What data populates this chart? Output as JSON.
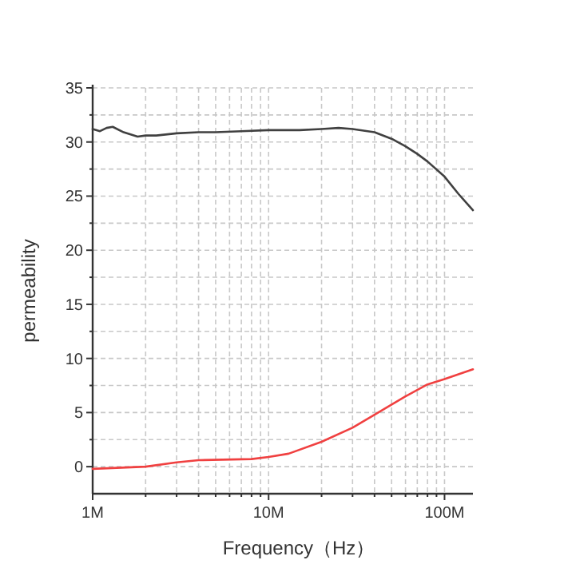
{
  "chart_data": {
    "type": "line",
    "xlabel": "Frequency（Hz）",
    "ylabel": "permeability",
    "log": "x",
    "xlim": [
      1000000,
      145000000
    ],
    "xticks": [
      {
        "value": 1000000,
        "label": "1M"
      },
      {
        "value": 10000000,
        "label": "10M"
      },
      {
        "value": 100000000,
        "label": "100M"
      }
    ],
    "ylim": [
      -2.5,
      35
    ],
    "yticks": [
      0,
      {
        "value": 2.5,
        "label": null
      },
      5,
      {
        "value": 7.5,
        "label": null
      },
      10,
      {
        "value": 12.5,
        "label": null
      },
      15,
      {
        "value": 17.5,
        "label": null
      },
      20,
      {
        "value": 22.5,
        "label": null
      },
      25,
      {
        "value": 27.5,
        "label": null
      },
      30,
      {
        "value": 32.5,
        "label": null
      },
      35
    ],
    "grid": true,
    "line_style": "solid",
    "marker": "none",
    "series": [
      {
        "color": "#404040",
        "x": [
          1000000,
          1100000,
          1200000,
          1300000,
          1500000,
          1800000,
          2000000,
          2300000,
          3000000,
          4000000,
          5000000,
          7000000,
          10000000,
          15000000,
          20000000,
          25000000,
          30000000,
          40000000,
          50000000,
          60000000,
          70000000,
          80000000,
          100000000,
          120000000,
          145000000
        ],
        "values": [
          31.2,
          31.0,
          31.3,
          31.4,
          30.9,
          30.5,
          30.6,
          30.6,
          30.8,
          30.9,
          30.9,
          31.0,
          31.1,
          31.1,
          31.2,
          31.3,
          31.2,
          30.9,
          30.3,
          29.6,
          28.9,
          28.2,
          26.8,
          25.2,
          23.7
        ]
      },
      {
        "color": "#f04040",
        "x": [
          1000000,
          2000000,
          3000000,
          4000000,
          8000000,
          10000000,
          13000000,
          20000000,
          30000000,
          40000000,
          60000000,
          80000000,
          100000000,
          145000000
        ],
        "values": [
          -0.2,
          0.0,
          0.4,
          0.6,
          0.7,
          0.9,
          1.2,
          2.3,
          3.6,
          4.8,
          6.5,
          7.6,
          8.1,
          9.0
        ]
      }
    ]
  }
}
